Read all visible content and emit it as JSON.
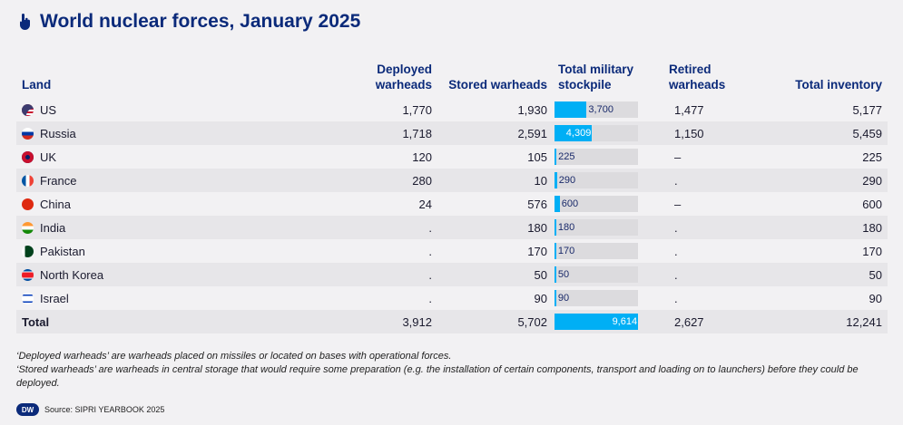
{
  "title": "World nuclear forces, January 2025",
  "title_icon": "pointer-hand-icon",
  "headers": {
    "land": "Land",
    "deployed": "Deployed warheads",
    "stored": "Stored warheads",
    "stockpile": "Total military stockpile",
    "retired": "Retired warheads",
    "inventory": "Total inventory"
  },
  "rows": [
    {
      "country": "US",
      "flag": "us-flag-icon",
      "deployed": "1,770",
      "stored": "1,930",
      "stockpile": "3,700",
      "stockpile_value": 3700,
      "retired": "1,477",
      "inventory": "5,177"
    },
    {
      "country": "Russia",
      "flag": "russia-flag-icon",
      "deployed": "1,718",
      "stored": "2,591",
      "stockpile": "4,309",
      "stockpile_value": 4309,
      "retired": "1,150",
      "inventory": "5,459"
    },
    {
      "country": "UK",
      "flag": "uk-flag-icon",
      "deployed": "120",
      "stored": "105",
      "stockpile": "225",
      "stockpile_value": 225,
      "retired": "–",
      "inventory": "225"
    },
    {
      "country": "France",
      "flag": "france-flag-icon",
      "deployed": "280",
      "stored": "10",
      "stockpile": "290",
      "stockpile_value": 290,
      "retired": ".",
      "inventory": "290"
    },
    {
      "country": "China",
      "flag": "china-flag-icon",
      "deployed": "24",
      "stored": "576",
      "stockpile": "600",
      "stockpile_value": 600,
      "retired": "–",
      "inventory": "600"
    },
    {
      "country": "India",
      "flag": "india-flag-icon",
      "deployed": ".",
      "stored": "180",
      "stockpile": "180",
      "stockpile_value": 180,
      "retired": ".",
      "inventory": "180"
    },
    {
      "country": "Pakistan",
      "flag": "pakistan-flag-icon",
      "deployed": ".",
      "stored": "170",
      "stockpile": "170",
      "stockpile_value": 170,
      "retired": ".",
      "inventory": "170"
    },
    {
      "country": "North Korea",
      "flag": "north-korea-flag-icon",
      "deployed": ".",
      "stored": "50",
      "stockpile": "50",
      "stockpile_value": 50,
      "retired": ".",
      "inventory": "50"
    },
    {
      "country": "Israel",
      "flag": "israel-flag-icon",
      "deployed": ".",
      "stored": "90",
      "stockpile": "90",
      "stockpile_value": 90,
      "retired": ".",
      "inventory": "90"
    }
  ],
  "total": {
    "label": "Total",
    "deployed": "3,912",
    "stored": "5,702",
    "stockpile": "9,614",
    "stockpile_value": 9614,
    "retired": "2,627",
    "inventory": "12,241"
  },
  "notes": [
    "‘Deployed warheads’ are warheads placed on missiles or located on bases with operational forces.",
    "‘Stored warheads’ are warheads in central storage that would require some preparation (e.g. the installation of certain components, transport and loading on to launchers) before they could be deployed."
  ],
  "source": "Source: SIPRI YEARBOOK 2025",
  "logo": "DW",
  "colors": {
    "accent": "#00aff5",
    "title": "#0b2a7a",
    "track": "#dcdbde"
  }
}
